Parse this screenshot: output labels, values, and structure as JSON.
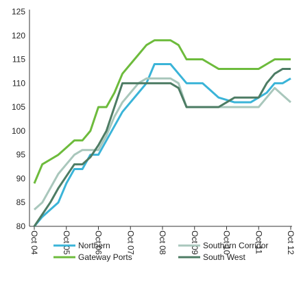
{
  "chart_data": {
    "type": "line",
    "categories": [
      "Oct 04",
      null,
      null,
      null,
      "Oct 05",
      null,
      null,
      null,
      "Oct 06",
      null,
      null,
      null,
      "Oct 07",
      null,
      null,
      null,
      "Oct 08",
      null,
      null,
      null,
      "Oct 09",
      null,
      null,
      null,
      "Oct 10",
      null,
      null,
      null,
      "Oct 11",
      null,
      null,
      null,
      "Oct 12"
    ],
    "series": [
      {
        "name": "Northern",
        "color": "#3ab4d8",
        "values": [
          80,
          82,
          83.5,
          85,
          89,
          92,
          92,
          95,
          95,
          98,
          101,
          104,
          106,
          108,
          110,
          114,
          114,
          114,
          112,
          110,
          110,
          110,
          108.5,
          107,
          106.5,
          106,
          106,
          106,
          107,
          108,
          110,
          110,
          111
        ]
      },
      {
        "name": "Southern Corridor",
        "color": "#a9c7bc",
        "values": [
          83.5,
          85,
          88,
          91,
          93,
          95,
          96,
          96,
          96,
          99,
          103,
          106,
          108,
          110,
          111,
          111,
          111,
          111,
          110,
          105,
          105,
          105,
          105,
          105,
          105,
          105,
          105,
          105,
          105,
          107,
          109,
          107.5,
          106
        ]
      },
      {
        "name": "Gateway Ports",
        "color": "#6dbb3c",
        "values": [
          89,
          93,
          94,
          95,
          96.5,
          98,
          98,
          100,
          105,
          105,
          108,
          112,
          114,
          116,
          118,
          119,
          119,
          119,
          118,
          115,
          115,
          115,
          114,
          113,
          113,
          113,
          113,
          113,
          113,
          114,
          115,
          115,
          115
        ]
      },
      {
        "name": "South West",
        "color": "#4d7c64",
        "values": [
          80,
          82.5,
          85,
          88,
          90.5,
          93,
          93,
          94.5,
          97,
          100,
          105,
          110,
          110,
          110,
          110,
          110,
          110,
          110,
          109,
          105,
          105,
          105,
          105,
          105,
          106,
          107,
          107,
          107,
          107,
          110,
          112,
          113,
          113
        ]
      }
    ],
    "ylim": [
      80,
      125
    ],
    "yticks": [
      80,
      85,
      90,
      95,
      100,
      105,
      110,
      115,
      120,
      125
    ]
  }
}
